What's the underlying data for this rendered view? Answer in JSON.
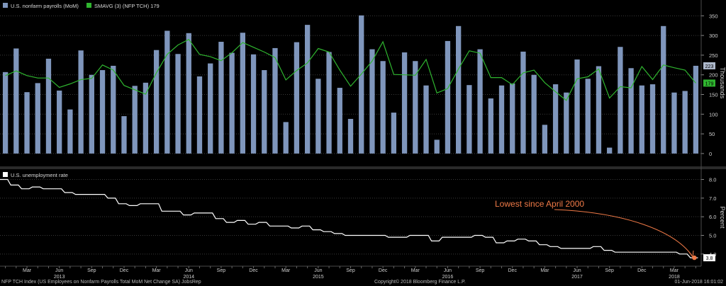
{
  "top_legend": {
    "payrolls_label": "U.S. nonfarm payrolls (MoM)",
    "smavg_label": "SMAVG (3) (NFP TCH) 179"
  },
  "bottom_legend": {
    "unemployment_label": "U.S. unemployment rate"
  },
  "annotation": {
    "text": "Lowest since April 2000"
  },
  "footer": {
    "left": "NFP TCH Index (US Employees on Nonfarm Payrolls Total MoM Net Change SA) JobsRep",
    "center": "Copyright© 2018 Bloomberg Finance L.P.",
    "right": "01-Jun-2018 16:01:02"
  },
  "colors": {
    "bar": "#7f96bc",
    "smavg": "#2fb52f",
    "rate": "#ffffff",
    "annotation": "#f07a47",
    "grid": "#3a3a3a"
  },
  "chart_data": [
    {
      "type": "bar",
      "panel": "top",
      "ylabel": "Thousands",
      "ylim": [
        -20,
        365
      ],
      "yticks": [
        0,
        50,
        100,
        150,
        200,
        250,
        300,
        350
      ],
      "series": [
        {
          "name": "U.S. nonfarm payrolls (MoM)",
          "values": [
            207,
            267,
            156,
            179,
            241,
            160,
            112,
            262,
            200,
            212,
            223,
            95,
            172,
            180,
            263,
            312,
            253,
            306,
            196,
            229,
            284,
            256,
            307,
            252,
            212,
            268,
            80,
            283,
            327,
            190,
            258,
            167,
            88,
            351,
            265,
            235,
            104,
            257,
            235,
            173,
            35,
            286,
            324,
            174,
            265,
            140,
            173,
            178,
            259,
            200,
            73,
            176,
            155,
            239,
            190,
            222,
            15,
            271,
            217,
            173,
            176,
            324,
            155,
            159,
            223
          ]
        },
        {
          "name": "SMAVG (3) (NFP TCH) 179",
          "values": [
            198,
            210,
            198,
            192,
            192,
            168,
            177,
            188,
            191,
            225,
            212,
            173,
            162,
            151,
            205,
            252,
            276,
            290,
            252,
            246,
            236,
            256,
            282,
            270,
            258,
            244,
            187,
            211,
            230,
            267,
            258,
            212,
            171,
            202,
            235,
            284,
            201,
            200,
            199,
            239,
            154,
            165,
            215,
            261,
            255,
            193,
            193,
            175,
            205,
            212,
            180,
            157,
            135,
            190,
            195,
            215,
            141,
            170,
            167,
            221,
            188,
            225,
            218,
            212,
            179
          ]
        }
      ],
      "value_labels": {
        "bar_last": "223",
        "smavg_last": "179"
      }
    },
    {
      "type": "line",
      "panel": "bottom",
      "ylabel": "Percent",
      "ylim": [
        3.5,
        8.4
      ],
      "yticks": [
        4.0,
        5.0,
        6.0,
        7.0,
        8.0
      ],
      "series": [
        {
          "name": "U.S. unemployment rate",
          "values": [
            8.0,
            7.7,
            7.5,
            7.6,
            7.5,
            7.5,
            7.3,
            7.2,
            7.2,
            7.2,
            7.0,
            6.7,
            6.6,
            6.7,
            6.7,
            6.3,
            6.3,
            6.1,
            6.2,
            6.2,
            5.9,
            5.7,
            5.8,
            5.6,
            5.7,
            5.5,
            5.5,
            5.4,
            5.5,
            5.3,
            5.2,
            5.1,
            5.0,
            5.0,
            5.0,
            5.0,
            4.9,
            4.9,
            5.0,
            5.0,
            4.7,
            4.9,
            4.9,
            4.9,
            5.0,
            4.9,
            4.6,
            4.7,
            4.8,
            4.7,
            4.5,
            4.4,
            4.3,
            4.3,
            4.3,
            4.4,
            4.2,
            4.1,
            4.1,
            4.1,
            4.1,
            4.1,
            4.1,
            4.0,
            3.8
          ]
        }
      ],
      "value_labels": {
        "last": "3.8"
      }
    }
  ],
  "x_axis": {
    "month_labels": [
      {
        "i": 2,
        "label": "Mar"
      },
      {
        "i": 5,
        "label": "Jun"
      },
      {
        "i": 8,
        "label": "Sep"
      },
      {
        "i": 11,
        "label": "Dec"
      },
      {
        "i": 14,
        "label": "Mar"
      },
      {
        "i": 17,
        "label": "Jun"
      },
      {
        "i": 20,
        "label": "Sep"
      },
      {
        "i": 23,
        "label": "Dec"
      },
      {
        "i": 26,
        "label": "Mar"
      },
      {
        "i": 29,
        "label": "Jun"
      },
      {
        "i": 32,
        "label": "Sep"
      },
      {
        "i": 35,
        "label": "Dec"
      },
      {
        "i": 38,
        "label": "Mar"
      },
      {
        "i": 41,
        "label": "Jun"
      },
      {
        "i": 44,
        "label": "Sep"
      },
      {
        "i": 47,
        "label": "Dec"
      },
      {
        "i": 50,
        "label": "Mar"
      },
      {
        "i": 53,
        "label": "Jun"
      },
      {
        "i": 56,
        "label": "Sep"
      },
      {
        "i": 59,
        "label": "Dec"
      },
      {
        "i": 62,
        "label": "Mar"
      }
    ],
    "year_labels": [
      {
        "i": 5,
        "label": "2013"
      },
      {
        "i": 17,
        "label": "2014"
      },
      {
        "i": 29,
        "label": "2015"
      },
      {
        "i": 41,
        "label": "2016"
      },
      {
        "i": 53,
        "label": "2017"
      },
      {
        "i": 62,
        "label": "2018"
      }
    ]
  }
}
